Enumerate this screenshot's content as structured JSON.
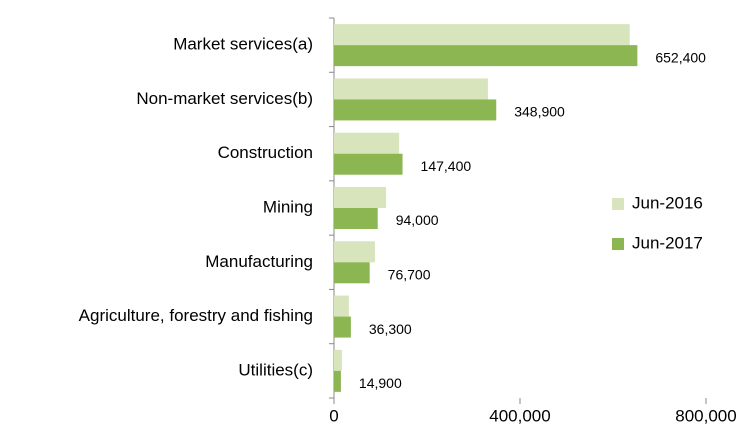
{
  "chart_data": {
    "type": "bar",
    "orientation": "horizontal",
    "categories": [
      "Market services(a)",
      "Non-market services(b)",
      "Construction",
      "Mining",
      "Manufacturing",
      "Agriculture, forestry and fishing",
      "Utilities(c)"
    ],
    "series": [
      {
        "name": "Jun-2016",
        "color": "#d8e4bc",
        "values": [
          636000,
          331000,
          140000,
          112000,
          88000,
          32000,
          17000
        ]
      },
      {
        "name": "Jun-2017",
        "color": "#8cb652",
        "values": [
          652400,
          348900,
          147400,
          94000,
          76700,
          36300,
          14900
        ],
        "value_labels": [
          "652,400",
          "348,900",
          "147,400",
          "94,000",
          "76,700",
          "36,300",
          "14,900"
        ]
      }
    ],
    "xlim": [
      0,
      800000
    ],
    "xticks": [
      0,
      {
        "value": 400000,
        "label": "400,000"
      },
      {
        "value": 800000,
        "label": "800,000"
      }
    ],
    "legend": "right"
  }
}
